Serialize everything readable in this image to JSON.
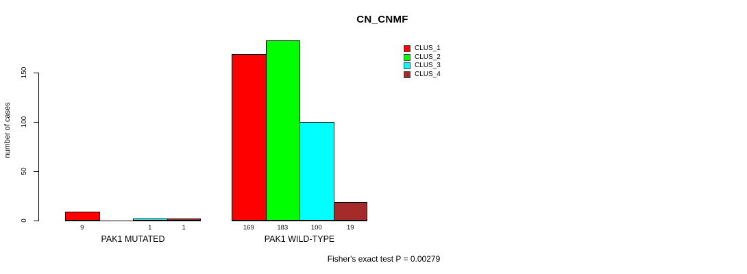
{
  "chart_data": {
    "type": "bar",
    "title": "CN_CNMF",
    "ylabel": "number of cases",
    "yticks": [
      0,
      50,
      100,
      150
    ],
    "ylim": [
      0,
      190
    ],
    "grid": false,
    "legend_position": "top-right",
    "categories": [
      "PAK1 MUTATED",
      "PAK1 WILD-TYPE"
    ],
    "series": [
      {
        "name": "CLUS_1",
        "color": "#ff0000",
        "values": [
          9,
          169
        ]
      },
      {
        "name": "CLUS_2",
        "color": "#00ff00",
        "values": [
          0,
          183
        ]
      },
      {
        "name": "CLUS_3",
        "color": "#00ffff",
        "values": [
          1,
          100
        ]
      },
      {
        "name": "CLUS_4",
        "color": "#a52a2a",
        "values": [
          1,
          19
        ]
      }
    ],
    "groups": [
      {
        "label": "PAK1 MUTATED",
        "value_labels": [
          "9",
          "",
          "1",
          "1"
        ]
      },
      {
        "label": "PAK1 WILD-TYPE",
        "value_labels": [
          "169",
          "183",
          "100",
          "19"
        ]
      }
    ],
    "footnote": "Fisher's exact test P = 0.00279"
  }
}
